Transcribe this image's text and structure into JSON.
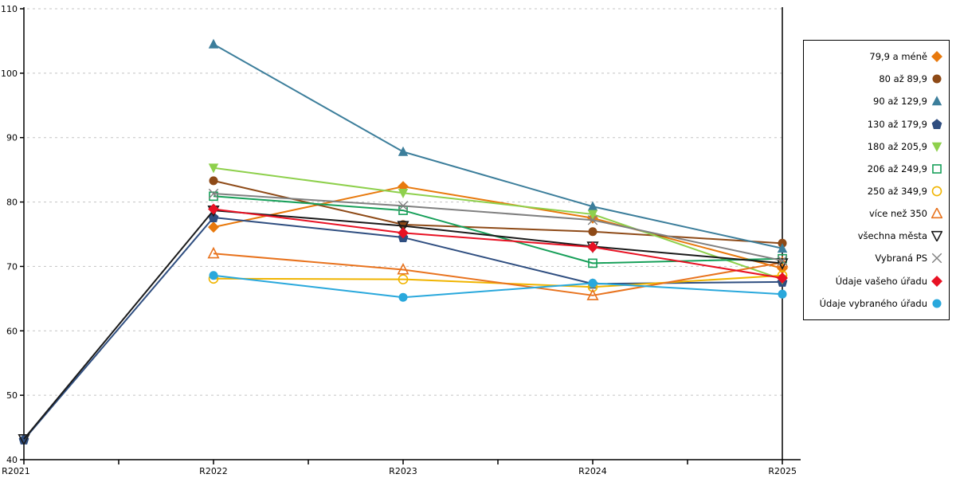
{
  "chart_data": {
    "type": "line",
    "title": "",
    "xlabel": "",
    "ylabel": "",
    "x_categories": [
      "R2021",
      "R2022",
      "R2023",
      "R2024",
      "R2025"
    ],
    "yticks": [
      40,
      50,
      60,
      70,
      80,
      90,
      100,
      110
    ],
    "ylim": [
      40,
      110
    ],
    "grid": "horizontal-dashed",
    "gridline_color": "#c3c3c3",
    "axis_color": "#000000",
    "legend_position": "right",
    "series": [
      {
        "name": "79,9 a méně",
        "color": "#e8790d",
        "marker": "diamond",
        "fill": "filled",
        "values": [
          null,
          76.1,
          82.4,
          77.5,
          69.7
        ]
      },
      {
        "name": "80 až 89,9",
        "color": "#8e4a17",
        "marker": "circle",
        "fill": "filled",
        "values": [
          null,
          83.3,
          76.5,
          75.4,
          73.6
        ]
      },
      {
        "name": "90 až 129,9",
        "color": "#3c7e9b",
        "marker": "triangle-up",
        "fill": "filled",
        "values": [
          null,
          104.5,
          87.8,
          79.3,
          72.8
        ]
      },
      {
        "name": "130 až 179,9",
        "color": "#2f4e80",
        "marker": "pentagon",
        "fill": "filled",
        "values": [
          43.1,
          77.6,
          74.5,
          67.3,
          67.6
        ]
      },
      {
        "name": "180 až 205,9",
        "color": "#8ed04c",
        "marker": "triangle-down",
        "fill": "filled",
        "values": [
          null,
          85.3,
          81.4,
          78.1,
          68.0
        ]
      },
      {
        "name": "206 až 249,9",
        "color": "#18a05a",
        "marker": "square",
        "fill": "open",
        "values": [
          null,
          80.9,
          78.7,
          70.5,
          71.2
        ]
      },
      {
        "name": "250 až 349,9",
        "color": "#f0b400",
        "marker": "circle",
        "fill": "open",
        "values": [
          null,
          68.1,
          68.0,
          66.8,
          68.6
        ]
      },
      {
        "name": "více než 350",
        "color": "#e8731e",
        "marker": "triangle-up",
        "fill": "open",
        "values": [
          null,
          72.0,
          69.5,
          65.5,
          70.6
        ]
      },
      {
        "name": "všechna města",
        "color": "#1a1a1a",
        "marker": "triangle-down",
        "fill": "open",
        "values": [
          43.2,
          78.7,
          76.3,
          73.1,
          70.5
        ]
      },
      {
        "name": "Vybraná PS",
        "color": "#808080",
        "marker": "x",
        "fill": "open",
        "values": [
          null,
          81.3,
          79.4,
          77.2,
          70.9
        ]
      },
      {
        "name": "Údaje vašeho úřadu",
        "color": "#e81123",
        "marker": "diamond",
        "fill": "filled",
        "values": [
          null,
          78.9,
          75.2,
          73.0,
          68.2
        ]
      },
      {
        "name": "Údaje vybraného úřadu",
        "color": "#29a8dc",
        "marker": "circle",
        "fill": "filled",
        "values": [
          null,
          68.6,
          65.2,
          67.4,
          65.7
        ]
      }
    ]
  }
}
